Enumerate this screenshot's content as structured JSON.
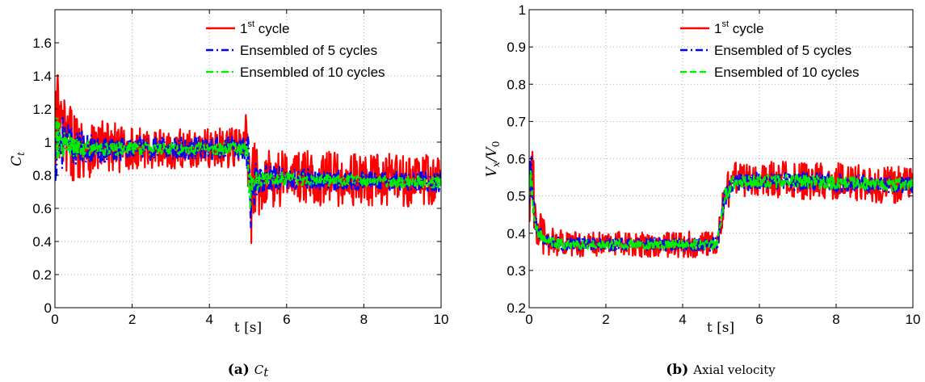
{
  "chart_data": [
    {
      "type": "line",
      "xlabel": "t [s]",
      "ylabel_base": "C",
      "ylabel_sub": "t",
      "xlim": [
        0,
        10
      ],
      "ylim": [
        0,
        1.8
      ],
      "xticks": [
        0,
        2,
        4,
        6,
        8,
        10
      ],
      "yticks": [
        0,
        0.2,
        0.4,
        0.6,
        0.8,
        1,
        1.2,
        1.4,
        1.6
      ],
      "grid": true,
      "legend_placement": "top-right",
      "caption_tag": "(a)",
      "caption_text_base": "C",
      "caption_text_sub": "t",
      "series": [
        {
          "legend_base": "1",
          "legend_sup": "st",
          "legend_rest": " cycle",
          "color": "#ff0000",
          "style": "solid",
          "x": [
            0,
            0.05,
            0.15,
            0.3,
            0.6,
            1,
            2,
            3,
            4,
            4.9,
            5.0,
            5.05,
            5.1,
            5.3,
            5.6,
            6,
            7,
            8,
            9,
            10
          ],
          "mean": [
            0.95,
            1.1,
            1.05,
            1.0,
            0.98,
            0.97,
            0.96,
            0.96,
            0.96,
            0.97,
            1.0,
            0.55,
            0.7,
            0.78,
            0.8,
            0.79,
            0.78,
            0.77,
            0.77,
            0.77
          ],
          "amp": [
            0.6,
            0.4,
            0.3,
            0.25,
            0.2,
            0.18,
            0.13,
            0.12,
            0.12,
            0.12,
            0.3,
            0.4,
            0.3,
            0.22,
            0.2,
            0.18,
            0.17,
            0.16,
            0.16,
            0.16
          ]
        },
        {
          "legend": "Ensembled of 5 cycles",
          "color": "#0000ff",
          "style": "dashdot",
          "x": [
            0,
            0.05,
            0.15,
            0.3,
            0.6,
            1,
            2,
            3,
            4,
            4.9,
            5.0,
            5.05,
            5.1,
            5.3,
            5.6,
            6,
            7,
            8,
            9,
            10
          ],
          "mean": [
            0.95,
            1.05,
            1.02,
            0.98,
            0.97,
            0.96,
            0.96,
            0.96,
            0.96,
            0.97,
            1.0,
            0.6,
            0.72,
            0.78,
            0.79,
            0.78,
            0.77,
            0.77,
            0.76,
            0.76
          ],
          "amp": [
            0.35,
            0.25,
            0.18,
            0.14,
            0.1,
            0.09,
            0.07,
            0.07,
            0.07,
            0.07,
            0.2,
            0.25,
            0.15,
            0.09,
            0.08,
            0.07,
            0.06,
            0.06,
            0.06,
            0.06
          ]
        },
        {
          "legend": "Ensembled of 10 cycles",
          "color": "#00ee00",
          "style": "dashdot",
          "x": [
            0,
            0.05,
            0.15,
            0.3,
            0.6,
            1,
            2,
            3,
            4,
            4.9,
            5.0,
            5.05,
            5.1,
            5.3,
            5.6,
            6,
            7,
            8,
            9,
            10
          ],
          "mean": [
            0.95,
            1.02,
            1.0,
            0.98,
            0.96,
            0.96,
            0.96,
            0.96,
            0.96,
            0.96,
            0.95,
            0.65,
            0.74,
            0.78,
            0.78,
            0.78,
            0.77,
            0.77,
            0.76,
            0.76
          ],
          "amp": [
            0.2,
            0.15,
            0.1,
            0.08,
            0.06,
            0.05,
            0.04,
            0.04,
            0.04,
            0.04,
            0.1,
            0.12,
            0.08,
            0.05,
            0.04,
            0.04,
            0.035,
            0.035,
            0.035,
            0.035
          ]
        }
      ]
    },
    {
      "type": "line",
      "xlabel": "t [s]",
      "ylabel_base": "V",
      "ylabel_sub1": "x",
      "ylabel_mid": "/V",
      "ylabel_sub2": "0",
      "xlim": [
        0,
        10
      ],
      "ylim": [
        0.2,
        1
      ],
      "xticks": [
        0,
        2,
        4,
        6,
        8,
        10
      ],
      "yticks": [
        0.2,
        0.3,
        0.4,
        0.5,
        0.6,
        0.7,
        0.8,
        0.9,
        1
      ],
      "grid": true,
      "legend_placement": "top-right",
      "caption_tag": "(b)",
      "caption_text": "Axial velocity",
      "series": [
        {
          "legend_base": "1",
          "legend_sup": "st",
          "legend_rest": " cycle",
          "color": "#ff0000",
          "style": "solid",
          "x": [
            0,
            0.05,
            0.1,
            0.2,
            0.35,
            0.6,
            1,
            2,
            3,
            4,
            4.9,
            5.1,
            5.3,
            6,
            7,
            8,
            9,
            10
          ],
          "mean": [
            0.52,
            0.6,
            0.5,
            0.42,
            0.39,
            0.38,
            0.37,
            0.37,
            0.37,
            0.37,
            0.37,
            0.5,
            0.54,
            0.55,
            0.54,
            0.54,
            0.53,
            0.53
          ],
          "amp": [
            0.12,
            0.15,
            0.12,
            0.06,
            0.05,
            0.04,
            0.035,
            0.035,
            0.035,
            0.035,
            0.035,
            0.05,
            0.05,
            0.05,
            0.05,
            0.05,
            0.05,
            0.05
          ]
        },
        {
          "legend": "Ensembled of 5 cycles",
          "color": "#0000ff",
          "style": "dashdot",
          "x": [
            0,
            0.05,
            0.1,
            0.2,
            0.35,
            0.6,
            1,
            2,
            3,
            4,
            4.9,
            5.1,
            5.3,
            6,
            7,
            8,
            9,
            10
          ],
          "mean": [
            0.52,
            0.57,
            0.48,
            0.41,
            0.385,
            0.375,
            0.37,
            0.37,
            0.37,
            0.37,
            0.37,
            0.5,
            0.535,
            0.54,
            0.54,
            0.535,
            0.53,
            0.53
          ],
          "amp": [
            0.06,
            0.06,
            0.05,
            0.03,
            0.025,
            0.02,
            0.018,
            0.018,
            0.018,
            0.018,
            0.018,
            0.03,
            0.025,
            0.025,
            0.025,
            0.025,
            0.025,
            0.025
          ]
        },
        {
          "legend": "Ensembled of 10 cycles",
          "color": "#00ee00",
          "style": "dashed",
          "x": [
            0,
            0.05,
            0.1,
            0.2,
            0.35,
            0.6,
            1,
            2,
            3,
            4,
            4.9,
            5.1,
            5.3,
            6,
            7,
            8,
            9,
            10
          ],
          "mean": [
            0.52,
            0.56,
            0.47,
            0.41,
            0.385,
            0.375,
            0.37,
            0.37,
            0.37,
            0.37,
            0.37,
            0.5,
            0.535,
            0.54,
            0.54,
            0.535,
            0.53,
            0.53
          ],
          "amp": [
            0.04,
            0.04,
            0.035,
            0.02,
            0.017,
            0.015,
            0.013,
            0.013,
            0.013,
            0.013,
            0.013,
            0.02,
            0.018,
            0.018,
            0.018,
            0.018,
            0.018,
            0.018
          ]
        }
      ]
    }
  ]
}
